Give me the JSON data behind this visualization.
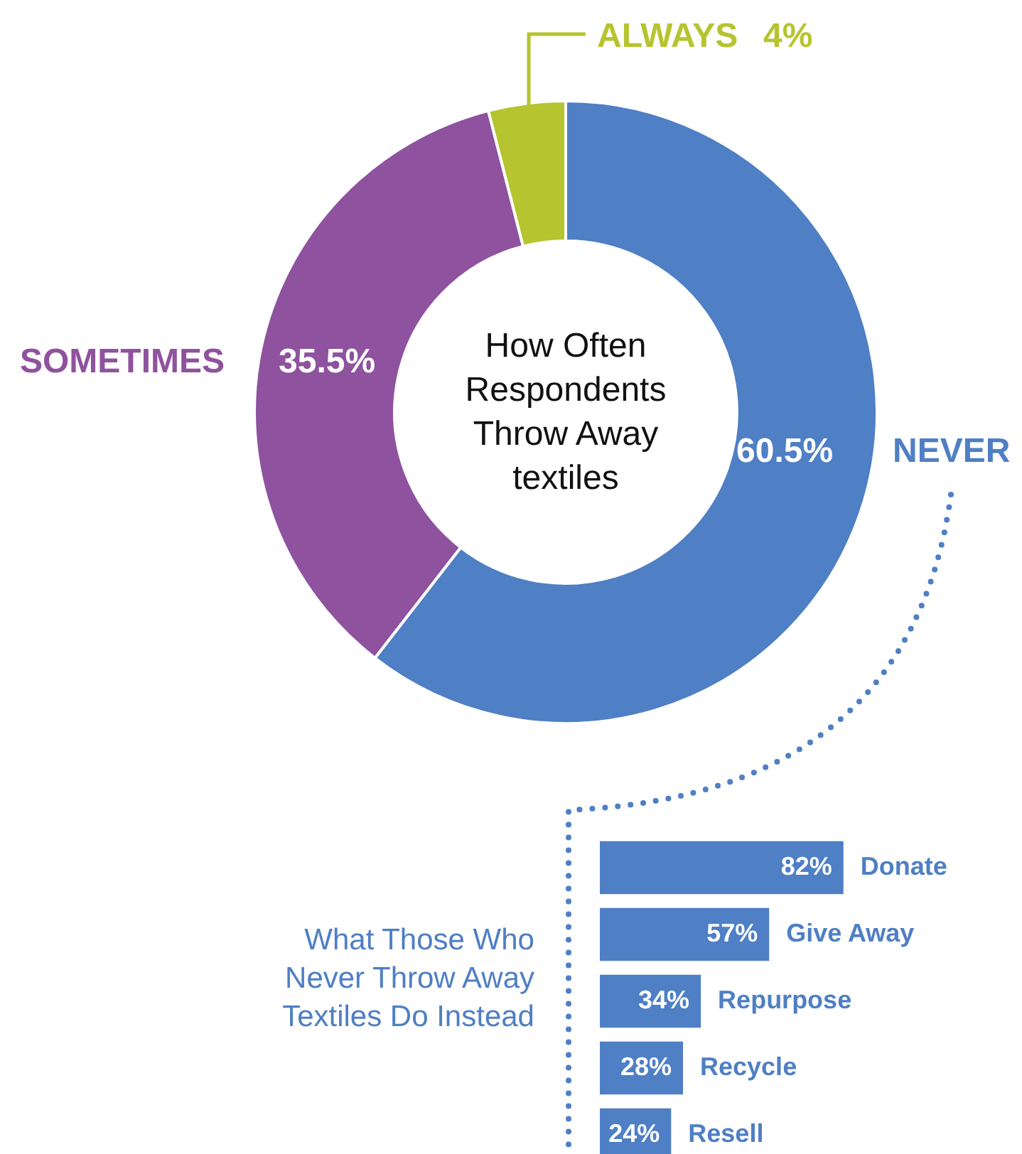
{
  "chart_data": [
    {
      "type": "donut",
      "title": "How Often Respondents Throw Away textiles",
      "categories": [
        "NEVER",
        "SOMETIMES",
        "ALWAYS"
      ],
      "values": [
        60.5,
        35.5,
        4
      ],
      "colors": [
        "#4f7fc4",
        "#8f529e",
        "#b5c42f"
      ],
      "value_labels": [
        "60.5%",
        "35.5%",
        "4%"
      ]
    },
    {
      "type": "bar",
      "orientation": "horizontal",
      "title": "What Those Who Never Throw Away Textiles Do Instead",
      "categories": [
        "Donate",
        "Give Away",
        "Repurpose",
        "Recycle",
        "Resell"
      ],
      "values": [
        82,
        57,
        34,
        28,
        24
      ],
      "color": "#4f7fc4",
      "value_labels": [
        "82%",
        "57%",
        "34%",
        "28%",
        "24%"
      ],
      "tick_labels": false
    }
  ]
}
